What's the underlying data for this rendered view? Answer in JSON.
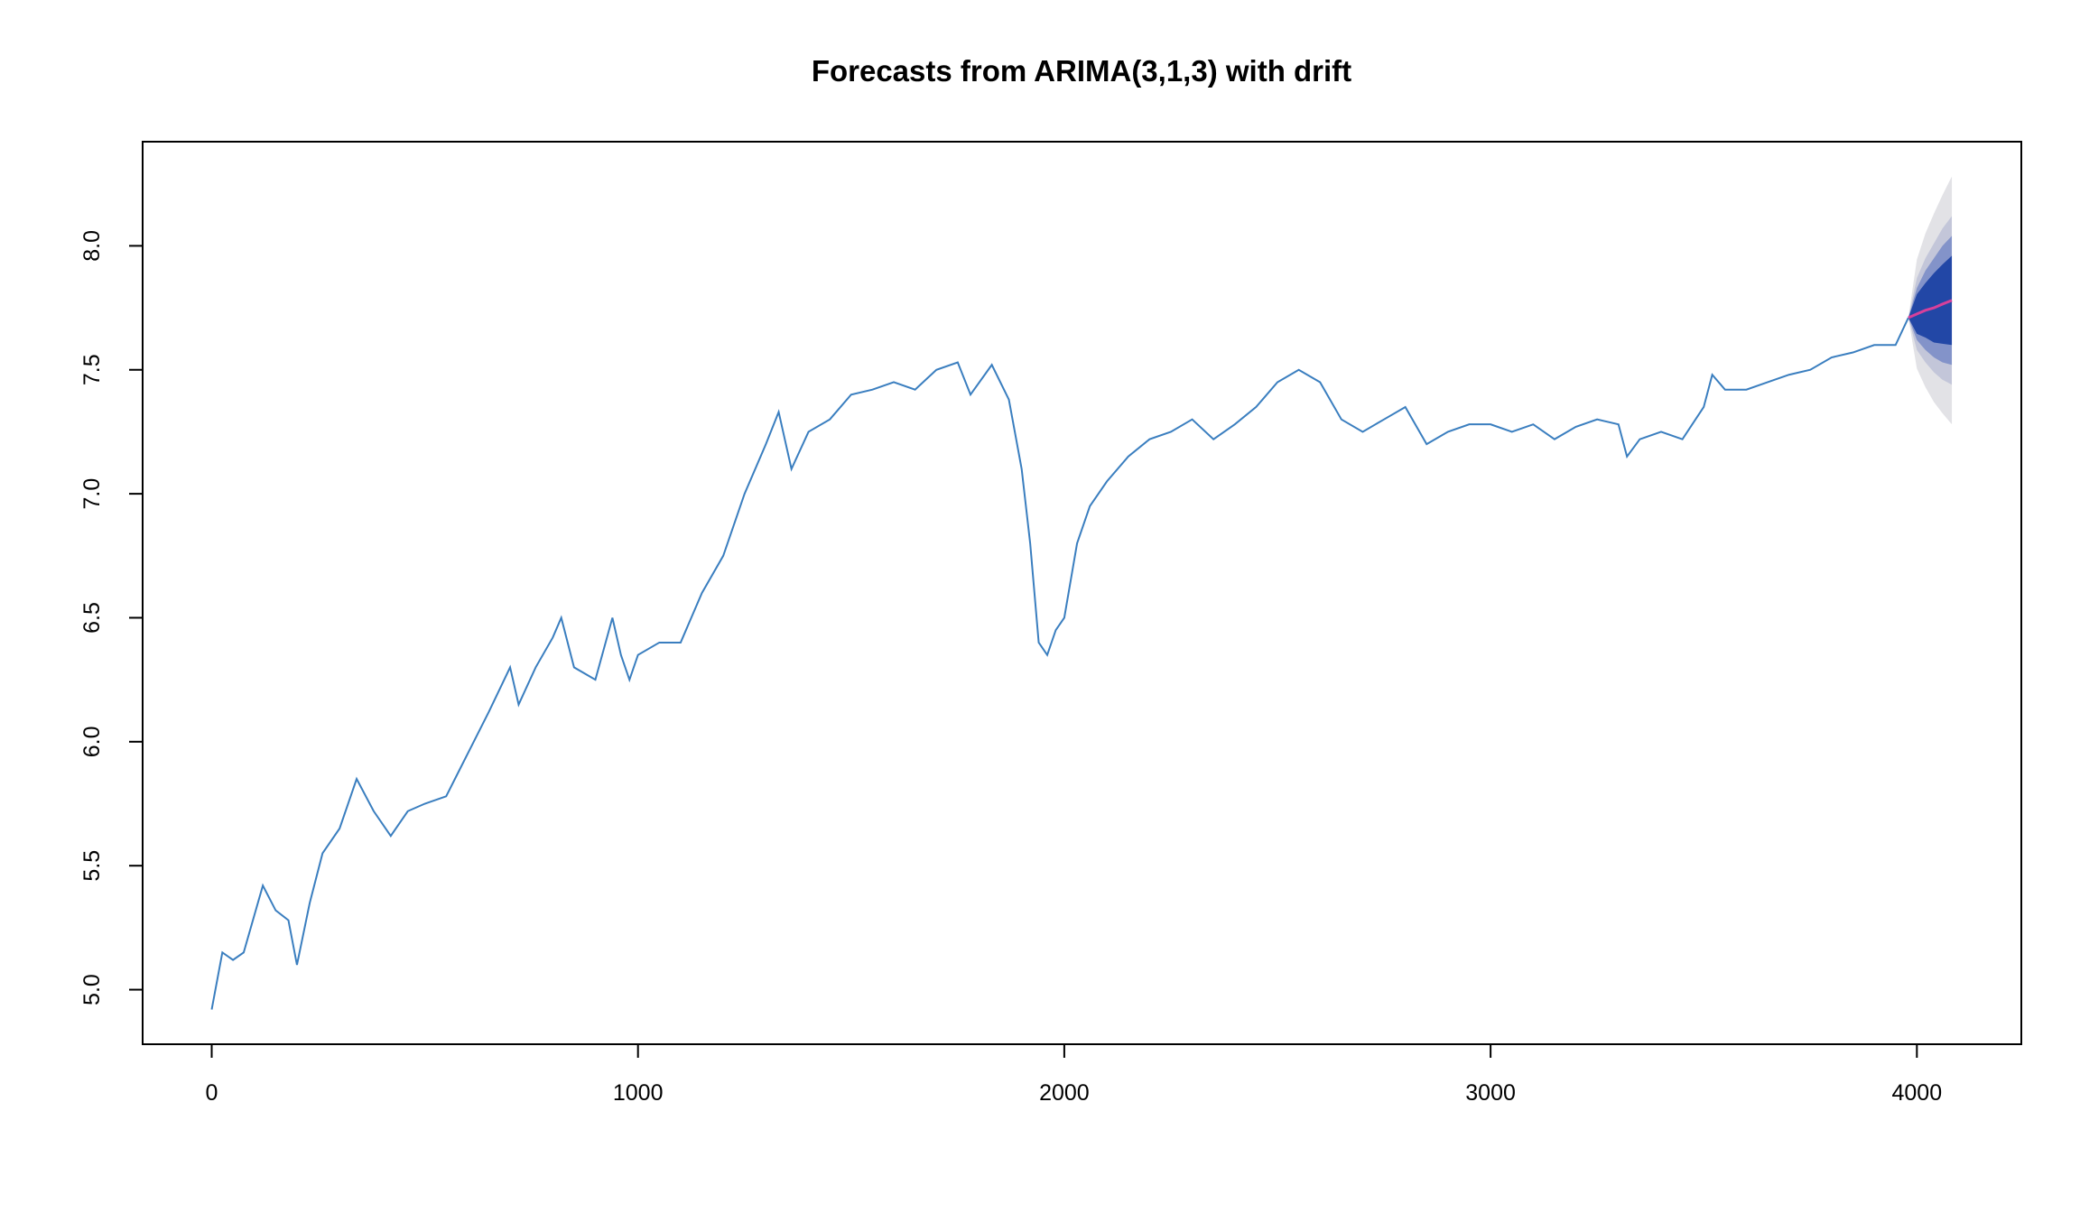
{
  "chart_data": {
    "type": "line",
    "title": "Forecasts from ARIMA(3,1,3) with drift",
    "xlim": [
      -162,
      4245
    ],
    "ylim": [
      4.78,
      8.42
    ],
    "xticks": [
      0,
      1000,
      2000,
      3000,
      4000
    ],
    "yticks": [
      {
        "value": 5,
        "label": "5.0"
      },
      {
        "value": 5.5,
        "label": "5.5"
      },
      {
        "value": 6,
        "label": "6.0"
      },
      {
        "value": 6.5,
        "label": "6.5"
      },
      {
        "value": 7,
        "label": "7.0"
      },
      {
        "value": 7.5,
        "label": "7.5"
      },
      {
        "value": 8,
        "label": "8.0"
      }
    ],
    "series": [
      {
        "color": "#3a7ebf",
        "x": [
          0,
          25,
          50,
          75,
          100,
          120,
          150,
          180,
          200,
          230,
          260,
          300,
          340,
          380,
          420,
          460,
          500,
          550,
          600,
          650,
          700,
          720,
          760,
          800,
          820,
          850,
          900,
          940,
          960,
          980,
          1000,
          1050,
          1100,
          1150,
          1200,
          1250,
          1300,
          1330,
          1360,
          1400,
          1450,
          1500,
          1550,
          1600,
          1650,
          1700,
          1750,
          1780,
          1830,
          1870,
          1900,
          1920,
          1940,
          1960,
          1980,
          2000,
          2030,
          2060,
          2100,
          2150,
          2200,
          2250,
          2300,
          2350,
          2400,
          2450,
          2500,
          2550,
          2600,
          2650,
          2700,
          2750,
          2800,
          2850,
          2900,
          2950,
          3000,
          3050,
          3100,
          3150,
          3200,
          3250,
          3300,
          3320,
          3350,
          3400,
          3450,
          3500,
          3520,
          3550,
          3600,
          3650,
          3700,
          3750,
          3800,
          3850,
          3900,
          3950,
          3980
        ],
        "values": [
          4.92,
          5.15,
          5.12,
          5.15,
          5.3,
          5.42,
          5.32,
          5.28,
          5.1,
          5.35,
          5.55,
          5.65,
          5.85,
          5.72,
          5.62,
          5.72,
          5.75,
          5.78,
          5.95,
          6.12,
          6.3,
          6.15,
          6.3,
          6.42,
          6.5,
          6.3,
          6.25,
          6.5,
          6.35,
          6.25,
          6.35,
          6.4,
          6.4,
          6.6,
          6.75,
          7.0,
          7.2,
          7.33,
          7.1,
          7.25,
          7.3,
          7.4,
          7.42,
          7.45,
          7.42,
          7.5,
          7.53,
          7.4,
          7.52,
          7.38,
          7.1,
          6.8,
          6.4,
          6.35,
          6.45,
          6.5,
          6.8,
          6.95,
          7.05,
          7.15,
          7.22,
          7.25,
          7.3,
          7.22,
          7.28,
          7.35,
          7.45,
          7.5,
          7.45,
          7.3,
          7.25,
          7.3,
          7.35,
          7.2,
          7.25,
          7.28,
          7.28,
          7.25,
          7.28,
          7.22,
          7.27,
          7.3,
          7.28,
          7.15,
          7.22,
          7.25,
          7.22,
          7.35,
          7.48,
          7.42,
          7.42,
          7.45,
          7.48,
          7.5,
          7.55,
          7.57,
          7.6,
          7.6,
          7.71
        ]
      }
    ],
    "forecast": {
      "color": "#d6409b",
      "x": [
        3980,
        4000,
        4020,
        4040,
        4060,
        4082
      ],
      "mean": [
        7.71,
        7.725,
        7.74,
        7.75,
        7.765,
        7.78
      ],
      "bands": [
        {
          "color": "#e2e2e6",
          "upper": [
            7.71,
            7.945,
            8.05,
            8.13,
            8.205,
            8.28
          ],
          "lower": [
            7.71,
            7.505,
            7.43,
            7.37,
            7.325,
            7.28
          ]
        },
        {
          "color": "#c3c6d9",
          "upper": [
            7.71,
            7.87,
            7.95,
            8.01,
            8.07,
            8.12
          ],
          "lower": [
            7.71,
            7.58,
            7.53,
            7.49,
            7.46,
            7.44
          ]
        },
        {
          "color": "#8393c9",
          "upper": [
            7.71,
            7.83,
            7.9,
            7.95,
            8.0,
            8.04
          ],
          "lower": [
            7.71,
            7.62,
            7.58,
            7.55,
            7.53,
            7.52
          ]
        },
        {
          "color": "#2247a6",
          "upper": [
            7.71,
            7.805,
            7.85,
            7.89,
            7.925,
            7.96
          ],
          "lower": [
            7.71,
            7.645,
            7.63,
            7.61,
            7.605,
            7.6
          ]
        }
      ]
    }
  }
}
